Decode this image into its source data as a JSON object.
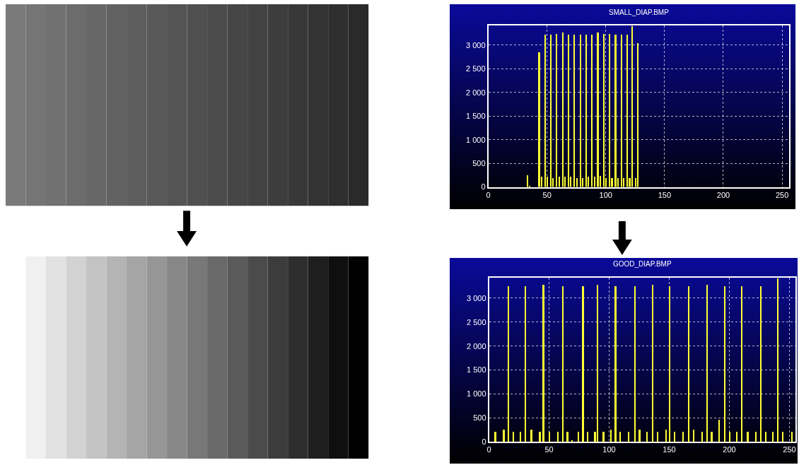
{
  "chart_data": [
    {
      "type": "bar",
      "title": "SMALL_DIAP.BMP",
      "x": [
        33,
        35,
        43,
        45,
        48,
        50,
        53,
        55,
        58,
        60,
        63,
        65,
        68,
        70,
        73,
        75,
        78,
        80,
        83,
        85,
        88,
        90,
        93,
        95,
        98,
        100,
        103,
        105,
        108,
        110,
        113,
        115,
        118,
        120,
        122,
        125,
        127
      ],
      "series": [
        {
          "color": "#ffff33",
          "values": [
            250,
            30,
            2850,
            220,
            3230,
            220,
            3230,
            200,
            3240,
            230,
            3270,
            220,
            3230,
            230,
            3230,
            200,
            3230,
            200,
            3230,
            230,
            3230,
            220,
            3270,
            240,
            3240,
            200,
            3240,
            200,
            3230,
            200,
            3230,
            200,
            3230,
            200,
            3400,
            200,
            3050
          ]
        }
      ],
      "xlim": [
        0,
        256
      ],
      "xticks": [
        0,
        50,
        100,
        150,
        200,
        250
      ],
      "ylim": [
        0,
        3420
      ],
      "yticks": [
        0,
        500,
        {
          "value": 1000,
          "label": "1 000"
        },
        {
          "value": 1500,
          "label": "1 500"
        },
        {
          "value": 2000,
          "label": "2 000"
        },
        {
          "value": 2500,
          "label": "2 500"
        },
        {
          "value": 3000,
          "label": "3 000"
        }
      ],
      "grid": true
    },
    {
      "type": "bar",
      "title": "GOOD_DIAP.BMP",
      "x": [
        5,
        12,
        16,
        20,
        26,
        30,
        35,
        42,
        45,
        50,
        57,
        61,
        65,
        69,
        74,
        78,
        82,
        88,
        90,
        95,
        101,
        105,
        109,
        116,
        121,
        125,
        131,
        136,
        140,
        147,
        150,
        154,
        161,
        166,
        170,
        177,
        181,
        185,
        191,
        196,
        200,
        206,
        210,
        215,
        222,
        226,
        230,
        236,
        240,
        244,
        252
      ],
      "series": [
        {
          "color": "#ffff33",
          "values": [
            200,
            250,
            3240,
            200,
            200,
            3240,
            250,
            200,
            3270,
            200,
            200,
            3240,
            200,
            30,
            200,
            3240,
            200,
            200,
            3270,
            200,
            250,
            3240,
            200,
            200,
            3240,
            250,
            200,
            3270,
            200,
            250,
            3240,
            200,
            200,
            3240,
            250,
            200,
            3270,
            200,
            450,
            3240,
            200,
            200,
            3240,
            200,
            200,
            3240,
            200,
            200,
            3400,
            200,
            200
          ]
        }
      ],
      "xlim": [
        0,
        255
      ],
      "xticks": [
        0,
        50,
        100,
        150,
        200,
        250
      ],
      "ylim": [
        0,
        3420
      ],
      "yticks": [
        0,
        500,
        {
          "value": 1000,
          "label": "1 000"
        },
        {
          "value": 1500,
          "label": "1 500"
        },
        {
          "value": 2000,
          "label": "2 000"
        },
        {
          "value": 2500,
          "label": "2 500"
        },
        {
          "value": 3000,
          "label": "3 000"
        }
      ],
      "grid": true
    }
  ]
}
